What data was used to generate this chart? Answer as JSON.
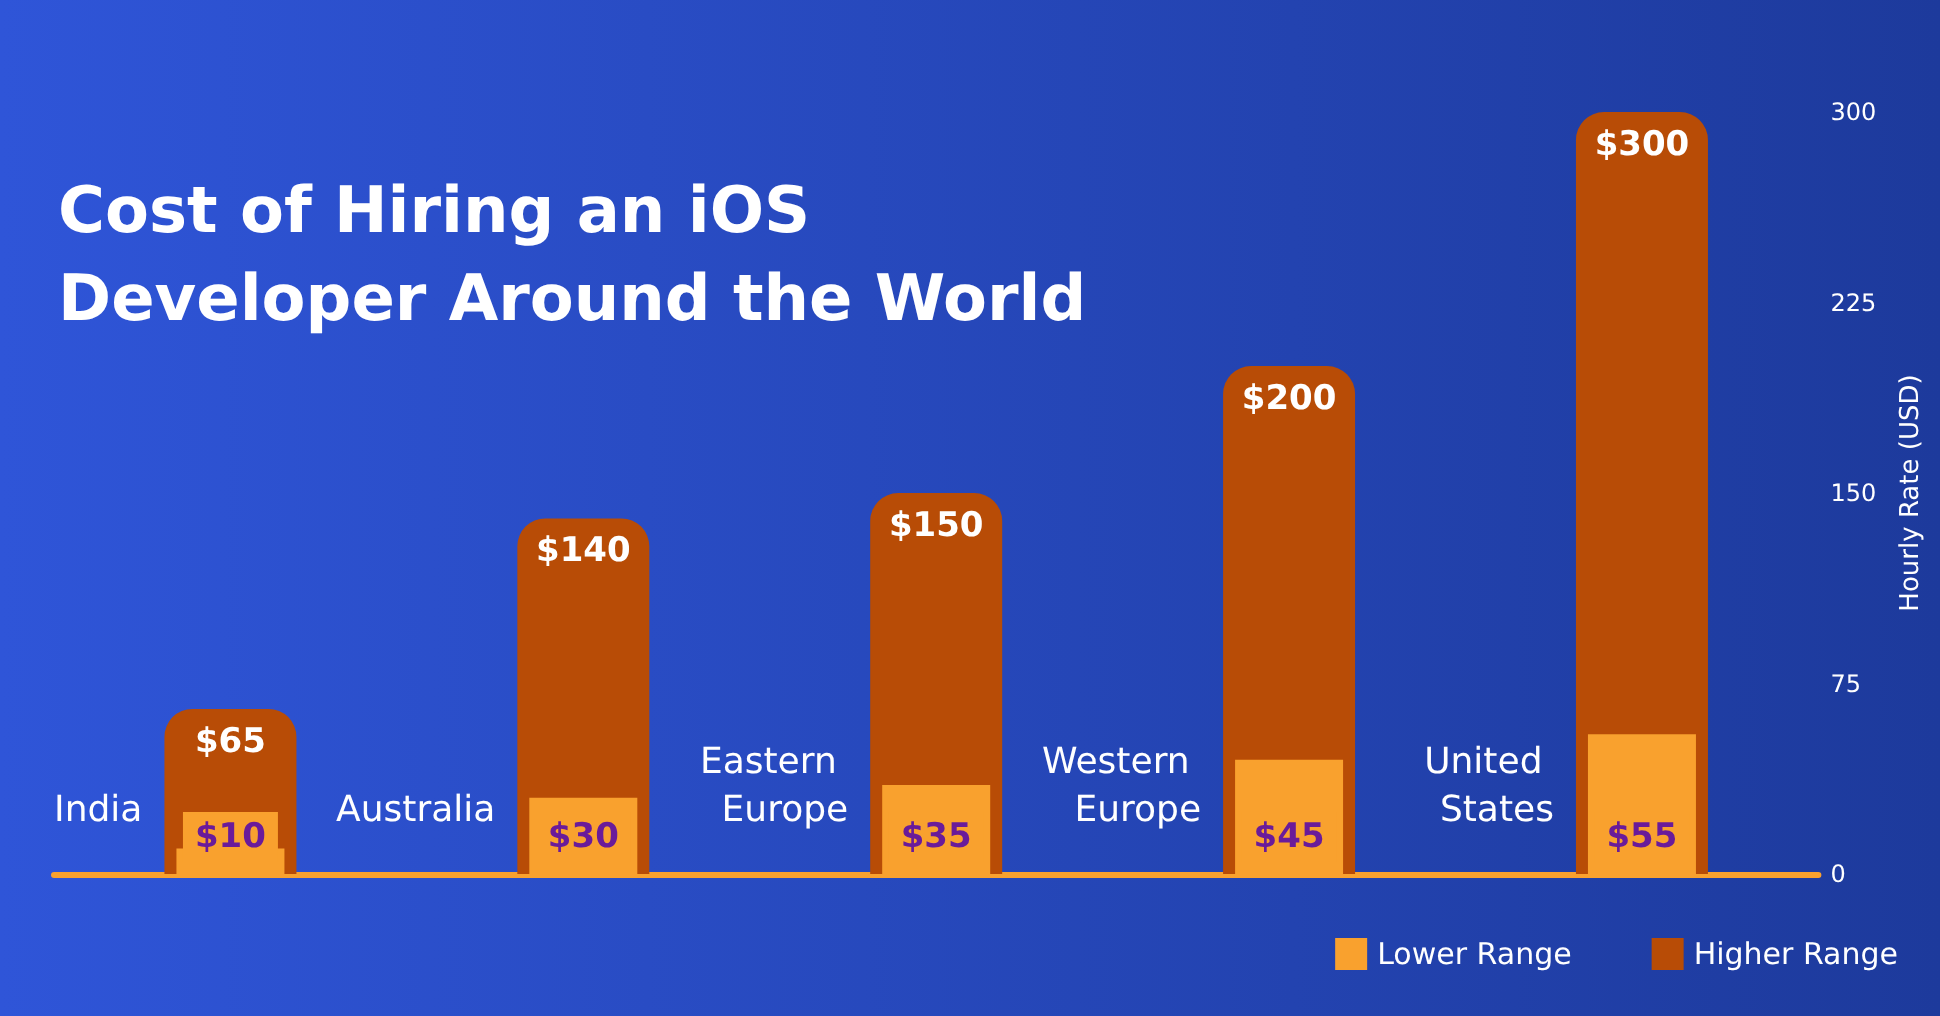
{
  "chart_data": {
    "type": "bar",
    "title": "Cost of Hiring an iOS Developer Around the World",
    "ylabel": "Hourly Rate (USD)",
    "categories": [
      "India",
      "Australia",
      "Eastern Europe",
      "Western Europe",
      "United States"
    ],
    "series": [
      {
        "name": "Higher Range",
        "color": "#b84c06",
        "values": [
          65,
          140,
          150,
          200,
          300
        ],
        "value_labels": [
          "$65",
          "$140",
          "$150",
          "$200",
          "$300"
        ]
      },
      {
        "name": "Lower Range",
        "color": "#f9a12e",
        "values": [
          10,
          30,
          35,
          45,
          55
        ],
        "value_labels": [
          "$10",
          "$30",
          "$35",
          "$45",
          "$55"
        ]
      }
    ],
    "ylim": [
      0,
      300
    ],
    "yticks": [
      0,
      75,
      150,
      225,
      300
    ],
    "legend": "bottom right"
  }
}
